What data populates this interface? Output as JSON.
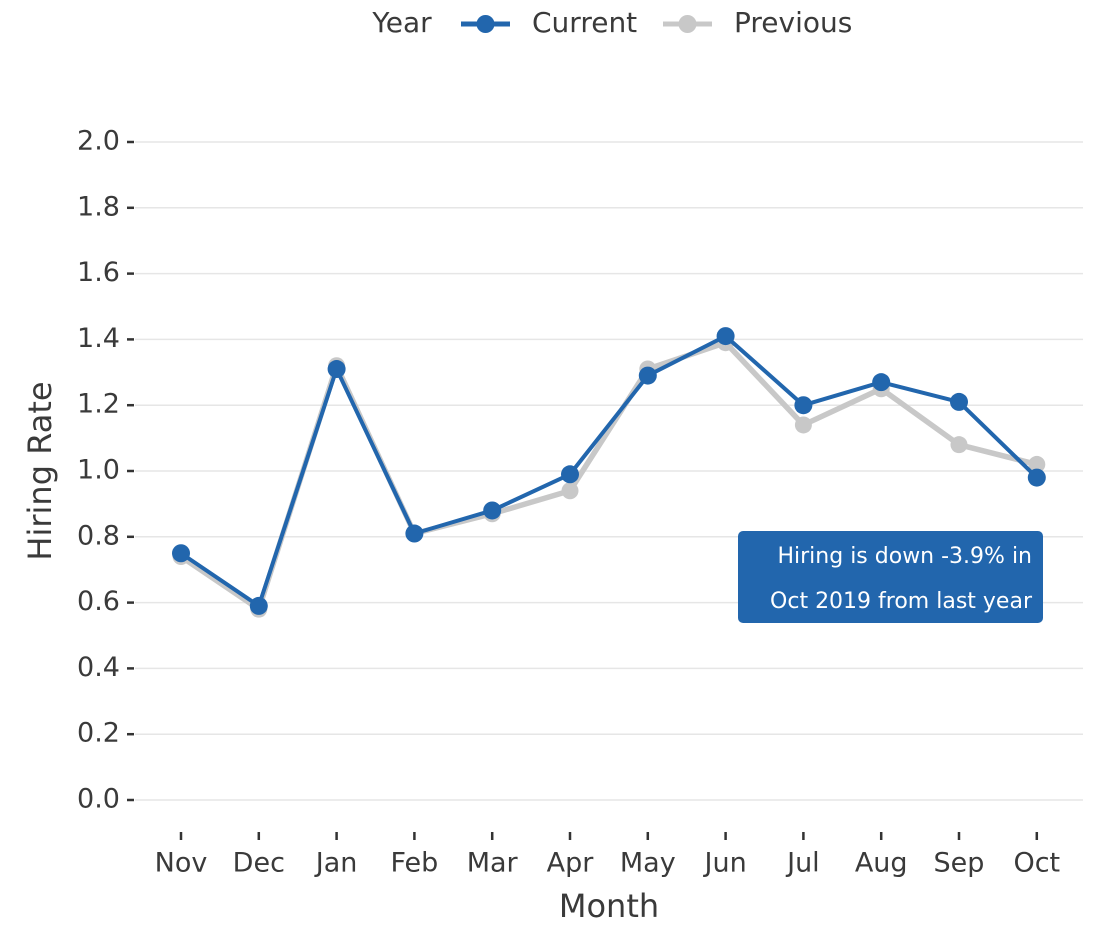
{
  "chart_data": {
    "type": "line",
    "legend_title": "Year",
    "x_label": "Month",
    "y_label": "Hiring Rate",
    "categories": [
      "Nov",
      "Dec",
      "Jan",
      "Feb",
      "Mar",
      "Apr",
      "May",
      "Jun",
      "Jul",
      "Aug",
      "Sep",
      "Oct"
    ],
    "series": [
      {
        "name": "Current",
        "color": "#2266ad",
        "values": [
          0.75,
          0.59,
          1.31,
          0.81,
          0.88,
          0.99,
          1.29,
          1.41,
          1.2,
          1.27,
          1.21,
          0.98
        ]
      },
      {
        "name": "Previous",
        "color": "#c8c8c8",
        "values": [
          0.74,
          0.58,
          1.32,
          0.81,
          0.87,
          0.94,
          1.31,
          1.39,
          1.14,
          1.25,
          1.08,
          1.02
        ]
      }
    ],
    "ylim": [
      0,
      2
    ],
    "yticks": [
      {
        "value": 0,
        "label": "0.0"
      },
      0.2,
      0.4,
      0.6,
      0.8,
      {
        "value": 1,
        "label": "1.0"
      },
      1.2,
      1.4,
      1.6,
      1.8,
      {
        "value": 2,
        "label": "2.0"
      }
    ],
    "grid": true,
    "legend_position": "top",
    "annotation": {
      "lines": [
        "Hiring is down -3.9% in",
        "Oct 2019 from last year"
      ],
      "color": "#2266ad"
    }
  }
}
